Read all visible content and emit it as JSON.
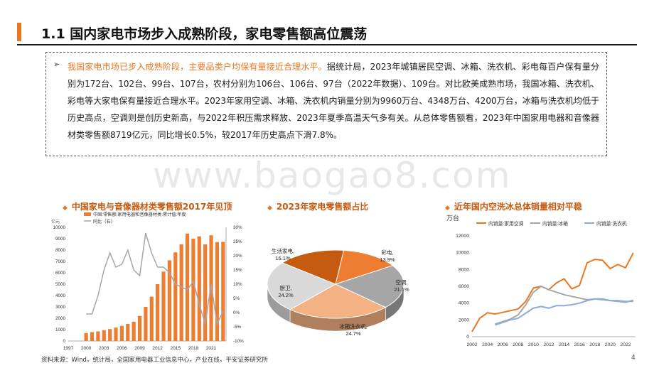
{
  "page": {
    "title": "1.1 国内家电市场步入成熟阶段，家电零售额高位震荡",
    "summary_highlight": "我国家电市场已步入成熟阶段，主要品类户均保有量接近合理水平。",
    "summary_rest": "据统计局，2023年城镇居民空调、冰箱、洗衣机、彩电每百户保有量分别为172台、102台、99台、107台，农村分别为106台、106台、97台（2022年数据）、109台。对比欧美成熟市场，我国冰箱、洗衣机、彩电等大家电保有量接近合理水平。2023年家用空调、冰箱、洗衣机内销量分别为9960万台、4348万台、4200万台，冰箱与洗衣机均低于历史高点，空调则是创历史新高，与2022年积压需求释放、2023年夏季高温天气多有关。从总体零售额看，2023年中国家用电器和音像器材类零售额8719亿元，同比增长0.5%，较2017年历史高点下滑7.8%。",
    "watermark": "www.baogao8.com",
    "source": "资料来源：Wind，统计局，全国家用电器工业信息中心，产业在线，平安证券研究所",
    "page_number": "4",
    "colors": {
      "accent": "#e87722",
      "title_orange": "#c55a11",
      "bar_orange": "#ed7d31",
      "line_gray": "#a6a6a6",
      "line_blue": "#8faadc"
    }
  },
  "chart_data": [
    {
      "type": "bar",
      "title": "中国家电与音像器材类零售额2017年见顶",
      "ylabel_left": "亿元",
      "legend": [
        "中国:零售额:家用电器和音像器材类:累计值:年度",
        "同比（右）"
      ],
      "x": [
        2000,
        2001,
        2002,
        2003,
        2004,
        2005,
        2006,
        2007,
        2008,
        2009,
        2010,
        2011,
        2012,
        2013,
        2014,
        2015,
        2016,
        2017,
        2018,
        2019,
        2020,
        2021,
        2022,
        2023
      ],
      "values": [
        700,
        780,
        850,
        950,
        1050,
        1180,
        1330,
        1500,
        1700,
        2200,
        3000,
        3900,
        5000,
        6100,
        7100,
        7800,
        8500,
        9450,
        9000,
        9200,
        8500,
        9300,
        8700,
        8719
      ],
      "growth_x": [
        2000,
        2001,
        2002,
        2003,
        2004,
        2005,
        2006,
        2007,
        2008,
        2009,
        2010,
        2011,
        2012,
        2013,
        2014,
        2015,
        2016,
        2017,
        2018,
        2019,
        2020,
        2021,
        2022,
        2023
      ],
      "growth": [
        -0.5,
        -0.5,
        6,
        15,
        21,
        16,
        17,
        22,
        15,
        13,
        28,
        21,
        16,
        16,
        14,
        10,
        9,
        8,
        11,
        3,
        -4,
        10,
        -4,
        0.5
      ],
      "yticks_left": [
        "0",
        "1000",
        "2000",
        "3000",
        "4000",
        "5000",
        "6000",
        "7000",
        "8000",
        "9000",
        "10000"
      ],
      "yticks_right": [
        "-10%",
        "-5%",
        "0%",
        "5%",
        "10%",
        "15%",
        "20%",
        "25%",
        "30%"
      ],
      "xticks": [
        "1997",
        "2000",
        "2003",
        "2006",
        "2009",
        "2012",
        "2015",
        "2018",
        "2021"
      ]
    },
    {
      "type": "pie",
      "title": "2023年家电零售额占比",
      "slices": [
        {
          "label": "彩电,",
          "value": 13.9,
          "pct": "13.9%",
          "color": "#ed7d31"
        },
        {
          "label": "空调,",
          "value": 21.1,
          "pct": "21.1%",
          "color": "#a6a6a6"
        },
        {
          "label": "冰箱洗衣机,",
          "value": 24.7,
          "pct": "24.7%",
          "color": "#f4b183"
        },
        {
          "label": "厨卫,",
          "value": 24.2,
          "pct": "24.2%",
          "color": "#d9d9d9"
        },
        {
          "label": "生活家电,",
          "value": 16.1,
          "pct": "16.1%",
          "color": "#c55a11"
        }
      ]
    },
    {
      "type": "line",
      "title": "近年国内空洗冰总体销量相对平稳",
      "ylabel": "万台",
      "ylim": [
        0,
        12000
      ],
      "yticks": [
        "0",
        "2000",
        "4000",
        "6000",
        "8000",
        "10000",
        "12000"
      ],
      "xticks": [
        "2002",
        "2004",
        "2006",
        "2008",
        "2010",
        "2012",
        "2014",
        "2016",
        "2018",
        "2020",
        "2022"
      ],
      "series": [
        {
          "name": "内销量:家用空调",
          "color": "#e87722",
          "x": [
            2002,
            2003,
            2004,
            2005,
            2006,
            2007,
            2008,
            2009,
            2010,
            2011,
            2012,
            2013,
            2014,
            2015,
            2016,
            2017,
            2018,
            2019,
            2020,
            2021,
            2022,
            2023
          ],
          "values": [
            600,
            2200,
            2850,
            2700,
            2900,
            3100,
            3300,
            4200,
            5800,
            6000,
            5600,
            6400,
            6900,
            5700,
            6100,
            8800,
            9200,
            9100,
            8100,
            8600,
            8200,
            9960
          ]
        },
        {
          "name": "内销量:冰箱",
          "color": "#a6a6a6",
          "x": [
            2005,
            2006,
            2007,
            2008,
            2009,
            2010,
            2011,
            2012,
            2013,
            2014,
            2015,
            2016,
            2017,
            2018,
            2019,
            2020,
            2021,
            2022,
            2023
          ],
          "values": [
            1500,
            1800,
            2100,
            2600,
            3800,
            5300,
            6000,
            5600,
            5300,
            5000,
            4800,
            4600,
            4400,
            4500,
            4400,
            4300,
            4200,
            4100,
            4348
          ]
        },
        {
          "name": "内销量:洗衣机",
          "color": "#8faadc",
          "x": [
            2005,
            2006,
            2007,
            2008,
            2009,
            2010,
            2011,
            2012,
            2013,
            2014,
            2015,
            2016,
            2017,
            2018,
            2019,
            2020,
            2021,
            2022,
            2023
          ],
          "values": [
            1400,
            1700,
            2000,
            2200,
            2800,
            3400,
            3600,
            3400,
            3700,
            3700,
            3800,
            4000,
            4300,
            4500,
            4500,
            4300,
            4300,
            4200,
            4200
          ]
        }
      ]
    }
  ]
}
